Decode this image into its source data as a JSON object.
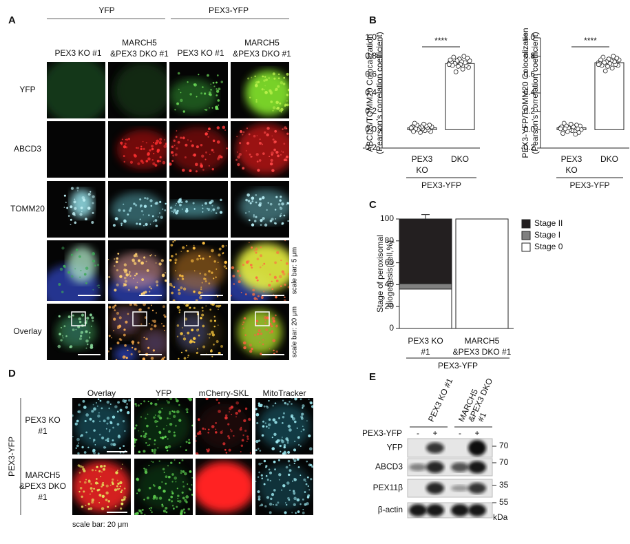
{
  "panel_a": {
    "label": "A",
    "groups": [
      "YFP",
      "PEX3-YFP"
    ],
    "columns": [
      [
        "PEX3 KO #1"
      ],
      [
        "MARCH5",
        "&PEX3 DKO #1"
      ],
      [
        "PEX3 KO #1"
      ],
      [
        "MARCH5",
        "&PEX3 DKO #1"
      ]
    ],
    "rows": [
      "YFP",
      "ABCD3",
      "TOMM20",
      "Overlay"
    ],
    "scale_bars": [
      "scale bar: 5 μm",
      "scale bar: 20 μm"
    ]
  },
  "panel_b": {
    "label": "B"
  },
  "panel_c": {
    "label": "C"
  },
  "chart_data": [
    {
      "type": "bar",
      "y_label": [
        "ABCD3/TOMM20 Colocalization",
        "(Pearson's correlation coefficient)"
      ],
      "categories": [
        [
          "PEX3",
          "KO"
        ],
        [
          "DKO"
        ]
      ],
      "group_label": "PEX3-YFP",
      "significance": "****",
      "values": [
        0.02,
        0.72
      ],
      "color": "#ffffff",
      "points": [
        [
          0.01,
          0.03,
          -0.02,
          0.05,
          0.0,
          0.02,
          0.04,
          -0.01,
          0.06,
          0.01,
          0.03,
          -0.03,
          0.02,
          0.0,
          0.05,
          0.01,
          0.07,
          -0.02,
          0.03,
          0.02
        ],
        [
          0.72,
          0.75,
          0.68,
          0.78,
          0.7,
          0.73,
          0.8,
          0.66,
          0.74,
          0.71,
          0.77,
          0.69,
          0.75,
          0.63,
          0.72,
          0.79,
          0.7,
          0.74,
          0.76,
          0.71
        ]
      ],
      "ylim": [
        -0.2,
        1.0
      ],
      "yticks": [
        -0.2,
        {
          "value": 0,
          "label": "0.0"
        },
        0.2,
        0.4,
        0.6,
        0.8,
        {
          "value": 1,
          "label": "1.0"
        }
      ]
    },
    {
      "type": "bar",
      "y_label": [
        "PEX3-YFP/TOMM20 Colocalization",
        "(Pearson's correlation coefficient)"
      ],
      "categories": [
        [
          "PEX3",
          "KO"
        ],
        [
          "DKO"
        ]
      ],
      "group_label": "PEX3-YFP",
      "significance": "****",
      "values": [
        0.02,
        0.73
      ],
      "color": "#ffffff",
      "points": [
        [
          0.02,
          0.0,
          0.04,
          -0.03,
          0.01,
          0.05,
          -0.05,
          0.02,
          0.03,
          -0.01,
          0.06,
          0.0,
          0.02,
          -0.02,
          0.04,
          0.01,
          0.07,
          -0.04,
          0.03,
          0.01
        ],
        [
          0.73,
          0.76,
          0.7,
          0.78,
          0.71,
          0.74,
          0.8,
          0.67,
          0.75,
          0.72,
          0.77,
          0.69,
          0.74,
          0.64,
          0.73,
          0.79,
          0.7,
          0.76,
          0.72,
          0.71
        ]
      ],
      "ylim": [
        -0.2,
        1.0
      ],
      "yticks": [
        -0.2,
        {
          "value": 0,
          "label": "0.0"
        },
        0.2,
        0.4,
        0.6,
        0.8,
        {
          "value": 1,
          "label": "1.0"
        }
      ]
    },
    {
      "type": "stacked_bar",
      "y_label": [
        "Stage of peroxisomal",
        "biogenesis(cell,%)"
      ],
      "categories": [
        [
          "PEX3 KO",
          "#1"
        ],
        [
          "MARCH5",
          "&PEX3 DKO #1"
        ]
      ],
      "group_label": "PEX3-YFP",
      "series": [
        {
          "name": "Stage 0",
          "color": "#ffffff",
          "values": [
            36,
            100
          ]
        },
        {
          "name": "Stage I",
          "color": "#808080",
          "values": [
            5,
            0
          ]
        },
        {
          "name": "Stage II",
          "color": "#231f20",
          "values": [
            59,
            0
          ],
          "error": [
            4,
            null
          ]
        }
      ],
      "ylim": [
        0,
        100
      ],
      "yticks": [
        0,
        20,
        40,
        60,
        80,
        100
      ]
    }
  ],
  "panel_d": {
    "label": "D",
    "group": "PEX3-YFP",
    "columns": [
      "Overlay",
      "YFP",
      "mCherry-SKL",
      "MitoTracker"
    ],
    "rows": [
      [
        "PEX3 KO",
        "#1"
      ],
      [
        "MARCH5",
        "&PEX3 DKO",
        "#1"
      ]
    ],
    "scale_bar": "scale bar: 20 μm"
  },
  "panel_e": {
    "label": "E",
    "lanes": [
      [
        "PEX3 KO #1"
      ],
      [
        "MARCH5",
        "&PEX3 DKO",
        "#1"
      ]
    ],
    "condition": "PEX3-YFP",
    "signs": [
      "-",
      "+",
      "-",
      "+"
    ],
    "blots": [
      "YFP",
      "ABCD3",
      "PEX11β",
      "β-actin"
    ],
    "markers": [
      "70",
      "70",
      "35",
      "55"
    ],
    "unit": "kDa"
  }
}
